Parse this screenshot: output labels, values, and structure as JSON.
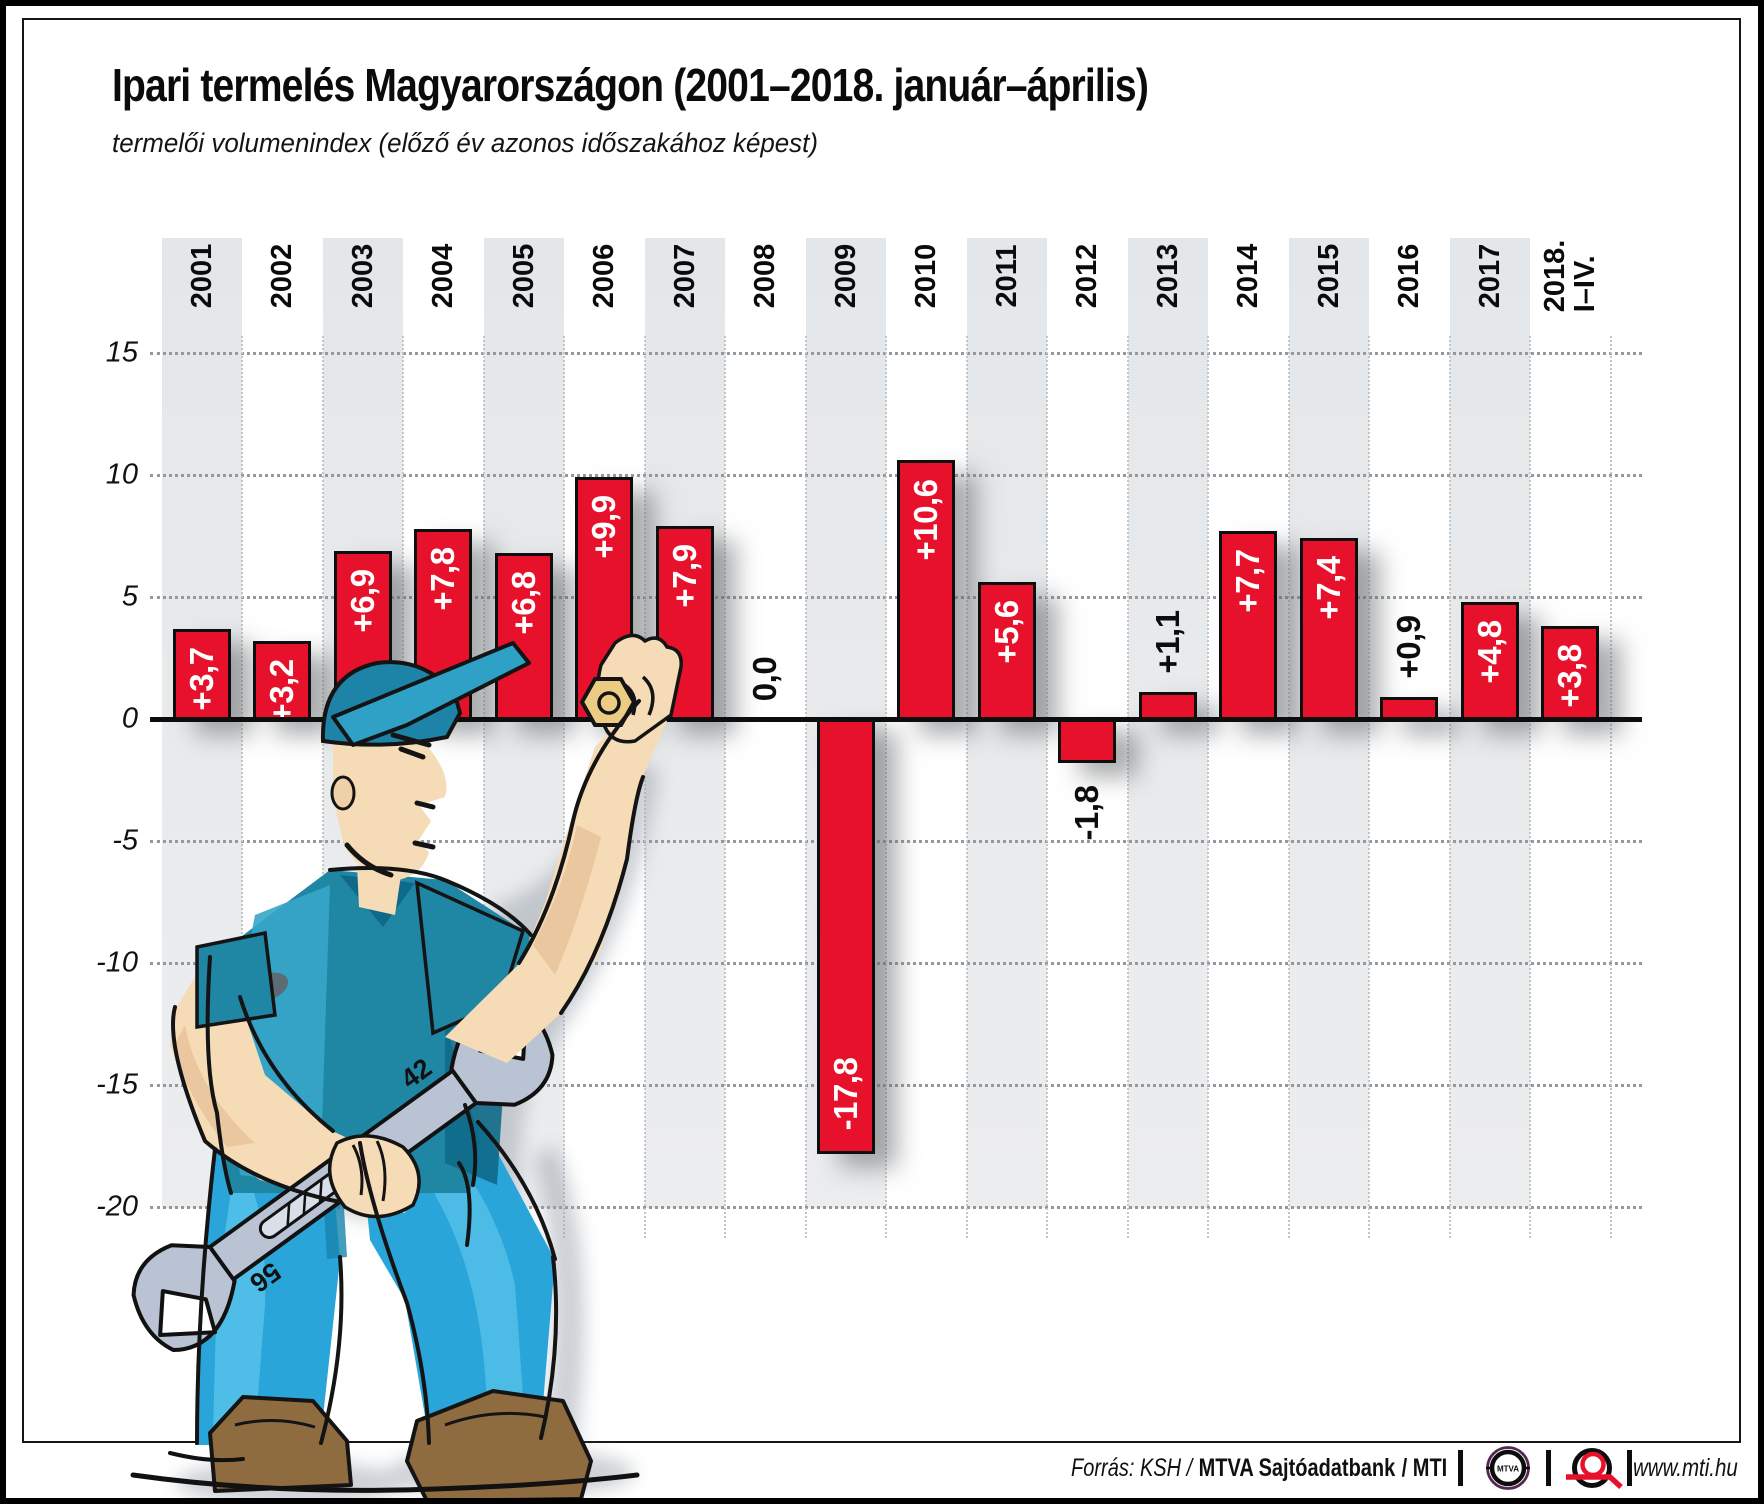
{
  "page": {
    "title": "Ipari termelés Magyarországon (2001–2018. január–április)",
    "subtitle": "termelői volumenindex (előző év azonos időszakához képest)"
  },
  "chart_data": {
    "type": "bar",
    "title": "Ipari termelés Magyarországon (2001–2018. január–április)",
    "subtitle": "termelői volumenindex (előző év azonos időszakához képest)",
    "categories": [
      "2001",
      "2002",
      "2003",
      "2004",
      "2005",
      "2006",
      "2007",
      "2008",
      "2009",
      "2010",
      "2011",
      "2012",
      "2013",
      "2014",
      "2015",
      "2016",
      "2017",
      "2018.\nI–IV."
    ],
    "values": [
      3.7,
      3.2,
      6.9,
      7.8,
      6.8,
      9.9,
      7.9,
      0.0,
      -17.8,
      10.6,
      5.6,
      -1.8,
      1.1,
      7.7,
      7.4,
      0.9,
      4.8,
      3.8
    ],
    "value_labels": [
      "+3,7",
      "+3,2",
      "+6,9",
      "+7,8",
      "+6,8",
      "+9,9",
      "+7,9",
      "0,0",
      "-17,8",
      "+10,6",
      "+5,6",
      "-1,8",
      "+1,1",
      "+7,7",
      "+7,4",
      "+0,9",
      "+4,8",
      "+3,8"
    ],
    "label_placement": [
      "in",
      "in",
      "in",
      "in",
      "in",
      "in",
      "in",
      "above",
      "in-end",
      "in",
      "in",
      "below",
      "above",
      "in",
      "in",
      "above",
      "in",
      "in"
    ],
    "striped": [
      true,
      false,
      true,
      false,
      true,
      false,
      true,
      false,
      true,
      false,
      true,
      false,
      true,
      false,
      true,
      false,
      true,
      false
    ],
    "yticks": [
      15,
      10,
      5,
      0,
      -5,
      -10,
      -15,
      -20
    ],
    "ylim": [
      -20,
      15
    ],
    "xlabel": "",
    "ylabel": "",
    "grid": {
      "horizontal": "dotted",
      "column_separators": "dotted"
    },
    "legend_position": "none"
  },
  "illustration": {
    "wrench_number_top": "42",
    "wrench_number_bottom": "56"
  },
  "footer": {
    "source_prefix": "Forrás: KSH /",
    "source_bold": "MTVA Sajtóadatbank",
    "source_suffix": "/ MTI",
    "mtva_logo_text": "MTVA",
    "website": "www.mti.hu"
  },
  "colors": {
    "bar_red": "#e8112b",
    "stripe_gray": "#e7e9eb",
    "axis_black": "#0d0d0d",
    "bar_label_in": "#ffffff",
    "bar_label_out": "#0d0d0d",
    "worker_shirt_teal": "#1f86a4",
    "worker_pants_blue": "#2aa5da",
    "worker_skin": "#f6dcb6",
    "wrench_gray": "#b9c3d3",
    "nut_yellow": "#eccb82",
    "mtva_purple": "#55264f",
    "mti_logo_red": "#e8112b"
  }
}
